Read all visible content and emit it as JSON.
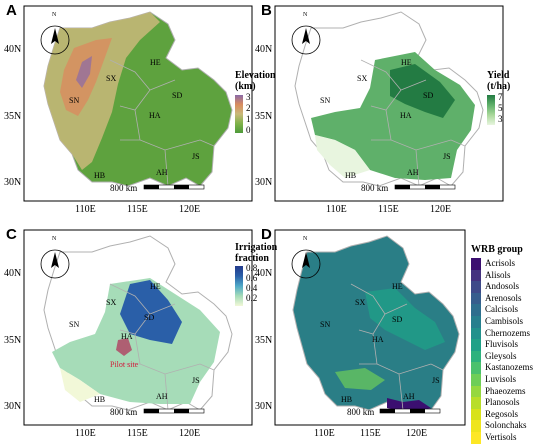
{
  "panels": [
    {
      "letter": "A",
      "provinces": [
        "HE",
        "SX",
        "SN",
        "SD",
        "HA",
        "JS",
        "HB",
        "AH"
      ],
      "legend": {
        "title": "Elevation\n(km)",
        "ticks": [
          "3",
          "2",
          "1",
          "0"
        ]
      }
    },
    {
      "letter": "B",
      "provinces": [
        "HE",
        "SX",
        "SN",
        "SD",
        "HA",
        "JS",
        "HB",
        "AH"
      ],
      "legend": {
        "title": "Yield\n(t/ha)",
        "ticks": [
          "7",
          "5",
          "3"
        ]
      }
    },
    {
      "letter": "C",
      "provinces": [
        "HE",
        "SX",
        "SN",
        "SD",
        "HA",
        "JS",
        "HB",
        "AH"
      ],
      "legend": {
        "title": "Irrigation\nfraction",
        "ticks": [
          "0.8",
          "0.6",
          "0.4",
          "0.2"
        ]
      },
      "annotation": "Pilot site"
    },
    {
      "letter": "D",
      "provinces": [
        "HE",
        "SX",
        "SN",
        "SD",
        "HA",
        "JS",
        "HB",
        "AH"
      ]
    }
  ],
  "y_ticks": [
    "40N",
    "35N",
    "30N"
  ],
  "x_ticks": [
    "110E",
    "115E",
    "120E"
  ],
  "scale_label": "800 km",
  "north_label": "N",
  "wrb": {
    "title": "WRB group",
    "items": [
      {
        "label": "Acrisols",
        "color": "#3b0f70"
      },
      {
        "label": "Alisols",
        "color": "#44327f"
      },
      {
        "label": "Andosols",
        "color": "#3e4a89"
      },
      {
        "label": "Arenosols",
        "color": "#365d8d"
      },
      {
        "label": "Calcisols",
        "color": "#2e6e8e"
      },
      {
        "label": "Cambisols",
        "color": "#277f8e"
      },
      {
        "label": "Chernozems",
        "color": "#21918c"
      },
      {
        "label": "Fluvisols",
        "color": "#1fa187"
      },
      {
        "label": "Gleysols",
        "color": "#2db27d"
      },
      {
        "label": "Kastanozems",
        "color": "#4ac16d"
      },
      {
        "label": "Luvisols",
        "color": "#6ece58"
      },
      {
        "label": "Phaeozems",
        "color": "#95d840"
      },
      {
        "label": "Planosols",
        "color": "#b8de29"
      },
      {
        "label": "Regosols",
        "color": "#d8e219"
      },
      {
        "label": "Solonchaks",
        "color": "#efe51c"
      },
      {
        "label": "Vertisols",
        "color": "#fde725"
      }
    ]
  },
  "colors": {
    "elevation": [
      "#4e9a3a",
      "#7fb24a",
      "#c9b87a",
      "#d98c5f",
      "#8a6aa8"
    ],
    "yield": [
      "#e8f5df",
      "#a9d89a",
      "#5fb06a",
      "#237b43"
    ],
    "irrigation": [
      "#f2f8d8",
      "#a6dcb8",
      "#4fa9c8",
      "#2a5fa8",
      "#233a8c"
    ],
    "soil_main": "#2a7e86",
    "boundary": "#b0b0b0"
  }
}
